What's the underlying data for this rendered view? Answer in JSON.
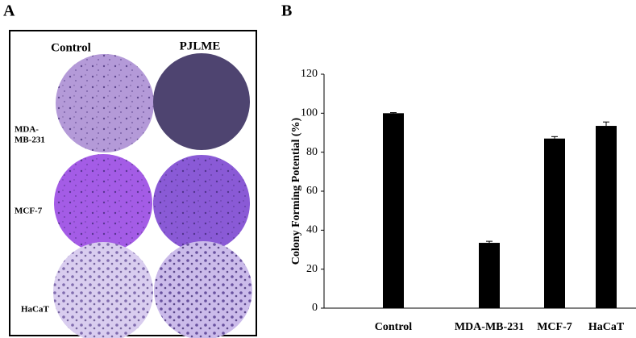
{
  "panel_labels": [
    "A",
    "B"
  ],
  "panel_a": {
    "columns": [
      "Control",
      "PJLME"
    ],
    "rows": [
      [
        "MDA-",
        "MB-231"
      ],
      [
        "MCF-7"
      ],
      [
        "HaCaT"
      ]
    ]
  },
  "chart_data": {
    "type": "bar",
    "y_label": "Colony Forming Potential (%)",
    "categories": [
      "Control",
      "MDA-MB-231",
      "MCF-7",
      "HaCaT"
    ],
    "values": [
      100,
      33.5,
      87,
      93.5
    ],
    "errors": [
      0.3,
      0.8,
      1,
      2
    ],
    "color": "#000000",
    "ylim": [
      0,
      120
    ],
    "yticks": [
      0,
      20,
      40,
      60,
      80,
      100,
      120
    ],
    "grid": false
  }
}
